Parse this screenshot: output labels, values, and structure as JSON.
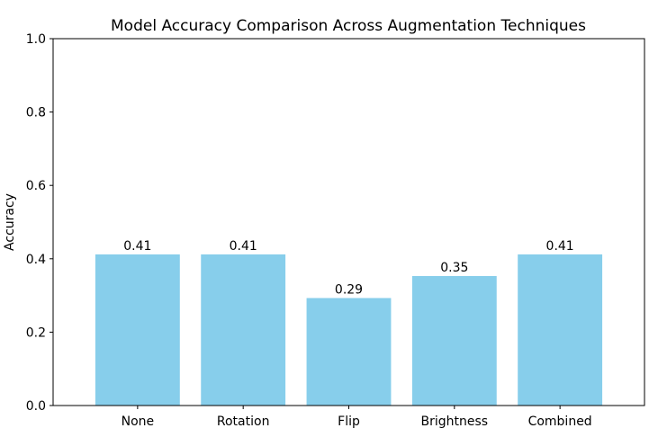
{
  "chart_data": {
    "type": "bar",
    "title": "Model Accuracy Comparison Across Augmentation Techniques",
    "xlabel": "",
    "ylabel": "Accuracy",
    "categories": [
      "None",
      "Rotation",
      "Flip",
      "Brightness",
      "Combined"
    ],
    "values": [
      0.412,
      0.412,
      0.293,
      0.353,
      0.412
    ],
    "value_labels": [
      "0.41",
      "0.41",
      "0.29",
      "0.35",
      "0.41"
    ],
    "ylim": [
      0,
      1.0
    ],
    "yticks": [
      0.0,
      0.2,
      0.4,
      0.6,
      0.8,
      1.0
    ],
    "ytick_labels": [
      "0.0",
      "0.2",
      "0.4",
      "0.6",
      "0.8",
      "1.0"
    ],
    "grid": false,
    "bar_color": "#87CEEB",
    "axis_color": "#000000"
  }
}
